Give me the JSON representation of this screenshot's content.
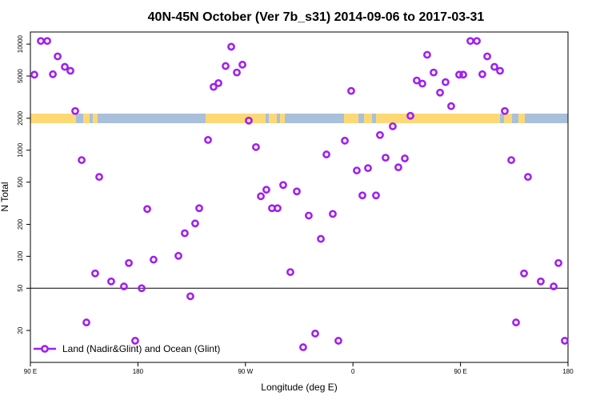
{
  "chart_data": {
    "type": "scatter",
    "title": "40N-45N October (Ver 7b_s31)   2014-09-06 to 2017-03-31",
    "xlabel": "Longitude (deg E)",
    "ylabel": "N Total",
    "xlim": [
      -270,
      180
    ],
    "xticks": [
      {
        "value": -270,
        "label": "90 E"
      },
      {
        "value": -180,
        "label": "180"
      },
      {
        "value": -90,
        "label": "90 W"
      },
      0,
      {
        "value": 90,
        "label": "90 E"
      },
      {
        "value": 180,
        "label": "180"
      }
    ],
    "ylim": [
      10,
      13000
    ],
    "yscale": "log",
    "yticks": [
      20,
      50,
      100,
      200,
      500,
      1000,
      2000,
      5000,
      10000
    ],
    "hline": 50,
    "legend": "lower left",
    "series": [
      {
        "name": "Land (Nadir&Glint) and Ocean (Glint)",
        "color": "#a020f0",
        "x": [
          -266.7,
          -261.3,
          -255.9,
          -251.2,
          -247.2,
          -241.2,
          -236.5,
          -232.5,
          -227.1,
          -223.1,
          -215.8,
          -212.4,
          -202.4,
          -191.7,
          -187.6,
          -182.3,
          -176.9,
          -172.2,
          -166.9,
          -146.1,
          -140.8,
          -136.1,
          -132.1,
          -128.7,
          -121.3,
          -116.7,
          -112.6,
          -106.6,
          -101.9,
          -97.2,
          -92.5,
          -87.2,
          -81.2,
          -77.1,
          -72.5,
          -67.8,
          -63.1,
          -58.4,
          -52.4,
          -47.0,
          -41.7,
          -37.0,
          -31.6,
          -26.9,
          -22.2,
          -16.9,
          -12.2,
          -6.8,
          -1.5,
          3.2,
          7.9,
          12.6,
          19.3,
          22.6,
          27.3,
          33.3,
          38.0,
          43.4,
          48.1,
          53.4,
          58.1,
          62.1,
          67.5,
          72.9,
          77.5,
          82.2,
          88.9,
          92.3,
          98.3,
          103.7,
          108.3,
          112.4,
          118.4,
          123.1,
          127.1,
          132.5,
          136.5,
          143.2,
          146.5,
          157.2,
          168.0,
          172.0,
          177.3
        ],
        "values": [
          5150,
          10700,
          10700,
          5200,
          7660,
          6100,
          5600,
          2340,
          807,
          23.8,
          69,
          560,
          58,
          52,
          86.5,
          16,
          50,
          279,
          93,
          101,
          165,
          42,
          204,
          284,
          1250,
          3950,
          4290,
          6210,
          9440,
          5400,
          6400,
          1900,
          1070,
          368,
          424,
          284,
          284,
          470,
          71,
          409,
          13.9,
          242,
          18.7,
          146,
          912,
          251,
          16,
          1230,
          3620,
          644,
          375,
          678,
          375,
          1390,
          850,
          1680,
          690,
          836,
          2110,
          4540,
          4240,
          7930,
          5400,
          3490,
          4380,
          2600,
          5150,
          5150,
          10700,
          10700,
          5200,
          7660,
          6100,
          5600,
          2340,
          807,
          23.8,
          69,
          560,
          58,
          52,
          86.5,
          16
        ]
      }
    ]
  }
}
